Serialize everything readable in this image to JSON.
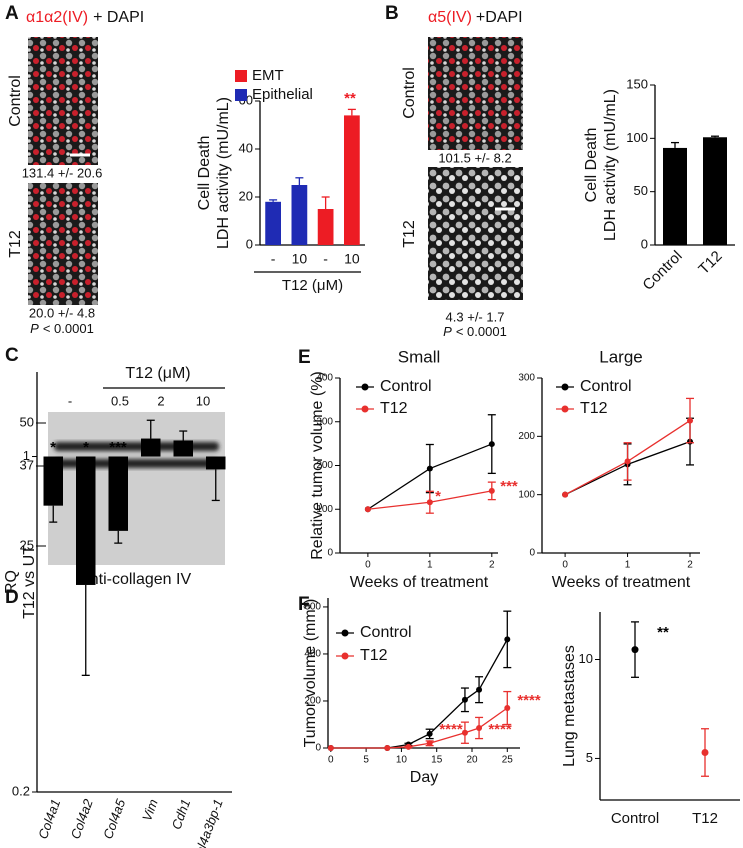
{
  "figure": {
    "panel_labels": [
      "A",
      "B",
      "C",
      "D",
      "E",
      "F"
    ],
    "panel_A_images": {
      "stain": "α1α2(IV)",
      "counterstain": "+ DAPI",
      "rows": [
        {
          "label": "Control",
          "stat": "131.4 +/- 20.6"
        },
        {
          "label": "T12",
          "stat": "20.0 +/- 4.8",
          "p_symbol": "P",
          "p_value": "< 0.0001"
        }
      ]
    },
    "panel_B_images": {
      "stain": "α5(IV)",
      "counterstain": "+DAPI",
      "rows": [
        {
          "label": "Control",
          "stat": "101.5 +/- 8.2"
        },
        {
          "label": "T12",
          "stat": "4.3 +/- 1.7",
          "p_symbol": "P",
          "p_value": "< 0.0001"
        }
      ]
    },
    "panel_C_blot": {
      "treatment": "T12 (μM)",
      "lanes": [
        "-",
        "0.5",
        "2",
        "10"
      ],
      "markers": [
        50,
        37,
        25
      ],
      "antibody": "anti-collagen IV"
    }
  },
  "chart_data": [
    {
      "type": "bar",
      "ylabel": [
        "Cell Death",
        "LDH activity (mU/mL)"
      ],
      "categories": [
        "-",
        "10",
        "-",
        "10"
      ],
      "xlabel": "T12 (μM)",
      "series": [
        {
          "name": "EMT",
          "color": "#ed1c24",
          "values": [
            null,
            null,
            15,
            54
          ],
          "errors": [
            null,
            null,
            5,
            2.5
          ]
        },
        {
          "name": "Epithelial",
          "color": "#1f2bb4",
          "values": [
            18,
            25,
            null,
            null
          ],
          "errors": [
            0.8,
            3,
            null,
            null
          ]
        }
      ],
      "ylim": [
        0,
        60
      ],
      "yticks": [
        0,
        20,
        40,
        60
      ],
      "annotations": [
        {
          "text": "**",
          "color": "#ed1c24"
        }
      ]
    },
    {
      "type": "bar",
      "ylabel": [
        "Cell Death",
        "LDH activity (mU/mL)"
      ],
      "categories": [
        "Control",
        "T12"
      ],
      "values": [
        91,
        101
      ],
      "errors": [
        5,
        1
      ],
      "color": "#000000",
      "ylim": [
        0,
        150
      ],
      "yticks": [
        0,
        50,
        100,
        150
      ]
    },
    {
      "type": "bar",
      "ylabel": [
        "RQ",
        "T12 vs UT"
      ],
      "categories": [
        "Col4a1",
        "Col4a2",
        "Col4a5",
        "Vim",
        "Cdh1",
        "Col4a3bp-1"
      ],
      "values": [
        0.79,
        0.54,
        0.7,
        1.09,
        1.08,
        0.94
      ],
      "errors": [
        0.06,
        0.19,
        0.04,
        0.1,
        0.05,
        0.13
      ],
      "color": "#000000",
      "log_scale": true,
      "ylim": [
        0.2,
        1.5
      ],
      "yticks": [
        0.2,
        1
      ],
      "annotations": [
        {
          "text": "*",
          "color": "#000000"
        },
        {
          "text": "*",
          "color": "#000000"
        },
        {
          "text": "***",
          "color": "#000000"
        }
      ]
    },
    {
      "type": "line",
      "title": "Small",
      "xlabel": "Weeks of treatment",
      "ylabel": "Relative tumor volume (%)",
      "x": [
        0,
        1,
        2
      ],
      "series": [
        {
          "name": "Control",
          "color": "#000000",
          "values": [
            100,
            193,
            249
          ],
          "errors": [
            0,
            55,
            67
          ]
        },
        {
          "name": "T12",
          "color": "#e8302e",
          "values": [
            100,
            116,
            142
          ],
          "errors": [
            0,
            25,
            20
          ]
        }
      ],
      "xlim": [
        -0.45,
        2.1
      ],
      "xticks": [
        0,
        1,
        2
      ],
      "ylim": [
        0,
        400
      ],
      "yticks": [
        0,
        100,
        200,
        300,
        400
      ],
      "annotations": [
        {
          "text": "*",
          "color": "#e8302e"
        },
        {
          "text": "***",
          "color": "#e8302e"
        }
      ]
    },
    {
      "type": "line",
      "title": "Large",
      "xlabel": "Weeks of treatment",
      "x": [
        0,
        1,
        2
      ],
      "series": [
        {
          "name": "Control",
          "color": "#000000",
          "values": [
            100,
            152,
            191
          ],
          "errors": [
            0,
            35,
            40
          ]
        },
        {
          "name": "T12",
          "color": "#e8302e",
          "values": [
            100,
            157,
            227
          ],
          "errors": [
            0,
            32,
            38
          ]
        }
      ],
      "xlim": [
        -0.37,
        2.16
      ],
      "xticks": [
        0,
        1,
        2
      ],
      "ylim": [
        0,
        300
      ],
      "yticks": [
        0,
        100,
        200,
        300
      ]
    },
    {
      "type": "line",
      "xlabel": "Day",
      "ylabel": "Tumor volume (mm³)",
      "x": [
        0,
        8,
        11,
        14,
        19,
        21,
        25
      ],
      "series": [
        {
          "name": "Control",
          "color": "#000000",
          "values": [
            0,
            0,
            15,
            60,
            205,
            248,
            462
          ],
          "errors": [
            0,
            0,
            5,
            20,
            50,
            55,
            120
          ]
        },
        {
          "name": "T12",
          "color": "#e8302e",
          "values": [
            0,
            0,
            5,
            20,
            65,
            85,
            170
          ],
          "errors": [
            0,
            0,
            3,
            10,
            45,
            45,
            70
          ]
        }
      ],
      "xlim": [
        -0.4,
        26.8
      ],
      "xticks": [
        0,
        5,
        10,
        15,
        20,
        25
      ],
      "ylim": [
        0,
        638
      ],
      "yticks": [
        0,
        200,
        400,
        600
      ],
      "annotations": [
        {
          "text": "****",
          "color": "#e8302e"
        },
        {
          "text": "****",
          "color": "#e8302e"
        },
        {
          "text": "****",
          "color": "#e8302e"
        }
      ]
    },
    {
      "type": "dot",
      "ylabel": "Lung metastases",
      "categories": [
        "Control",
        "T12"
      ],
      "values": [
        10.5,
        5.3
      ],
      "errors": [
        1.4,
        1.2
      ],
      "colors": [
        "#000000",
        "#e8302e"
      ],
      "ylim": [
        2.9,
        12.4
      ],
      "yticks": [
        5,
        10
      ],
      "annotations": [
        {
          "text": "**",
          "color": "#000000"
        }
      ]
    }
  ]
}
